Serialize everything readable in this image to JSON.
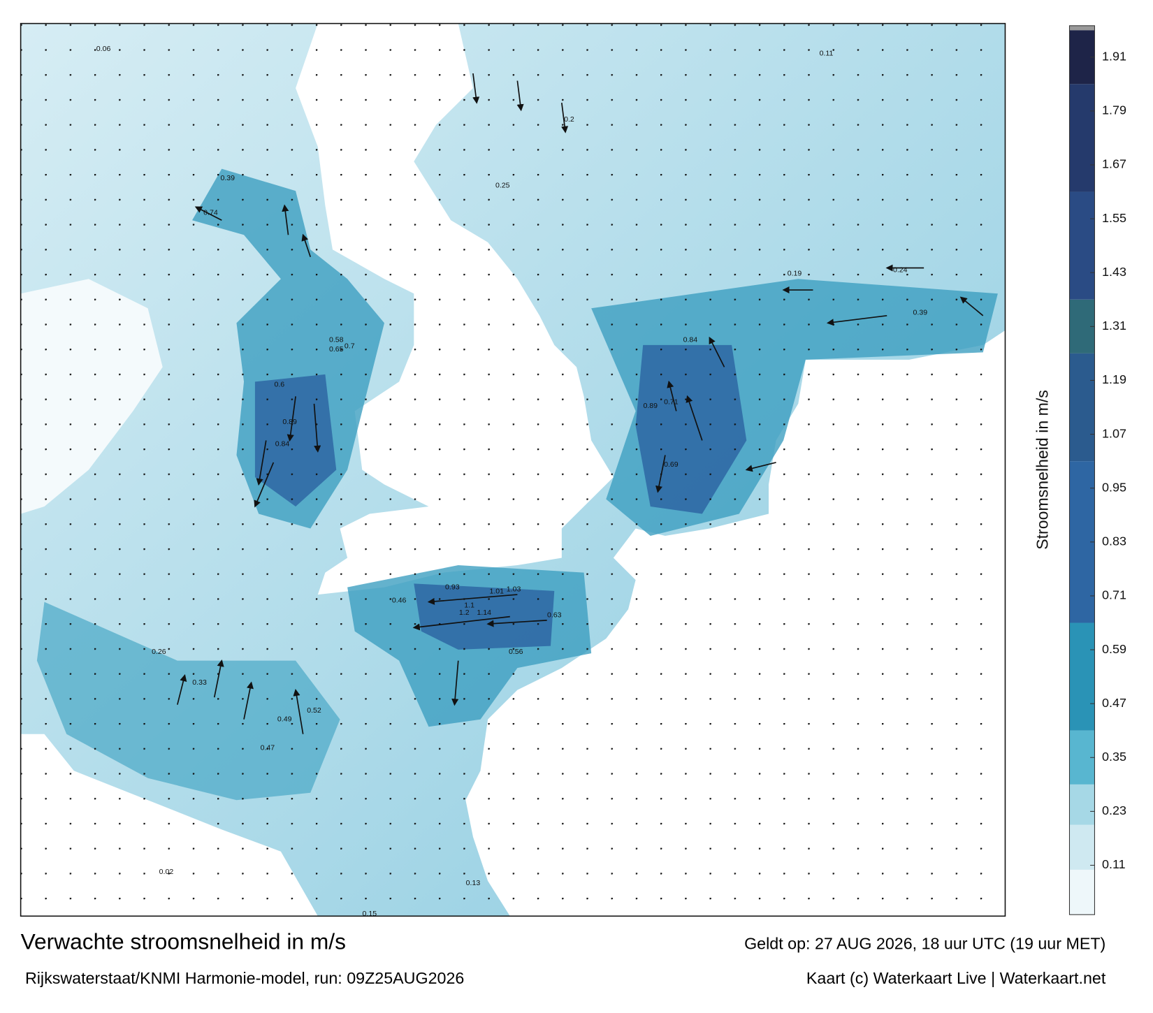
{
  "header": {
    "title": "Verwachte stroomsnelheid in m/s",
    "subtitle": "Rijkswaterstaat/KNMI Harmonie-model, run: 09Z25AUG2026",
    "valid_time": "Geldt op: 27 AUG 2026, 18 uur UTC (19 uur MET)",
    "credit": "Kaart (c) Waterkaart Live | Waterkaart.net"
  },
  "colorbar": {
    "label": "Stroomsnelheid in m/s",
    "lim": [
      0,
      1.98
    ],
    "ticks": [
      0.11,
      0.23,
      0.35,
      0.47,
      0.59,
      0.71,
      0.83,
      0.95,
      1.07,
      1.19,
      1.31,
      1.43,
      1.55,
      1.67,
      1.79,
      1.91
    ],
    "levels": [
      0,
      0.1,
      0.2,
      0.29,
      0.41,
      0.65,
      1.01,
      1.25,
      1.37,
      1.61,
      1.85,
      1.97,
      1.98
    ],
    "colors": [
      "#eef7fa",
      "#cfe9f1",
      "#a6d8e6",
      "#58b6d0",
      "#2a93b6",
      "#2e66a3",
      "#2b5b8e",
      "#2f6a78",
      "#2a4b84",
      "#253a6c",
      "#1e2448",
      "#9a9a9a"
    ]
  },
  "map_labels": [
    0.74,
    0.84,
    0.89,
    0.93,
    1.01,
    1.03,
    1.14,
    1.2,
    1.1,
    0.71,
    0.89,
    0.69,
    0.65,
    0.7,
    0.58,
    0.84,
    0.6,
    0.39,
    0.52,
    0.33,
    0.26,
    0.19,
    0.24,
    0.39,
    0.2,
    0.25,
    0.11,
    0.06,
    0.15,
    0.02,
    0.13,
    0.63,
    0.56,
    0.46,
    0.47,
    0.49
  ]
}
